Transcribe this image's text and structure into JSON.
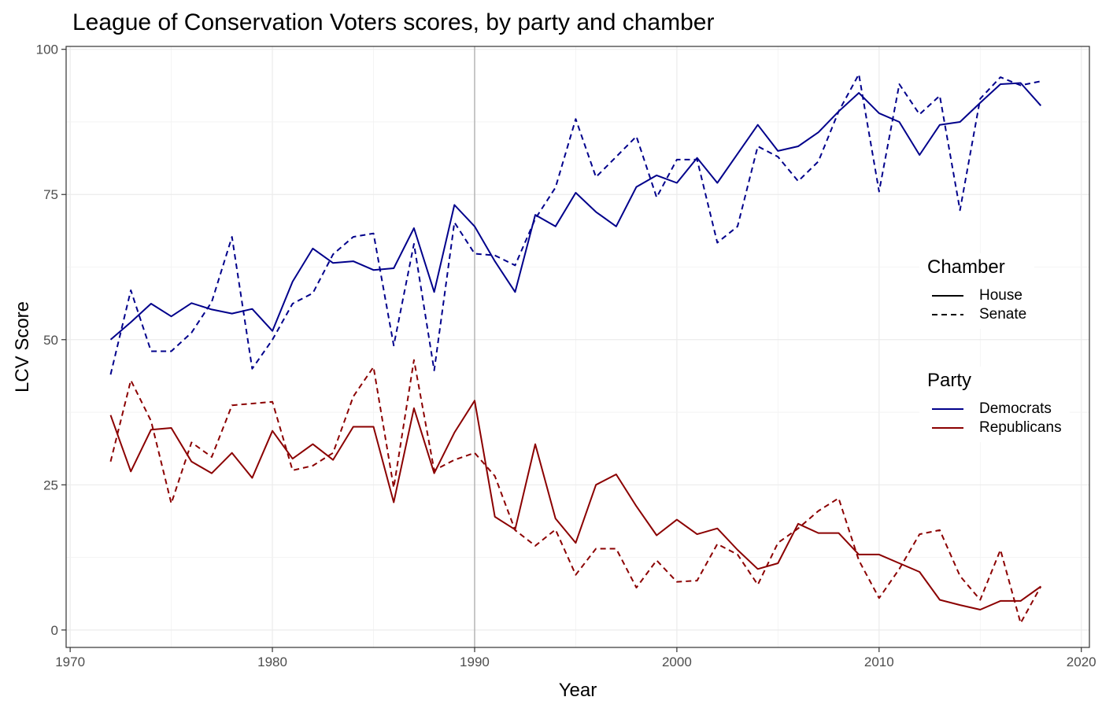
{
  "chart_data": {
    "type": "line",
    "title": "League of Conservation Voters scores, by party and chamber",
    "xlabel": "Year",
    "ylabel": "LCV Score",
    "xlim": [
      1969.8,
      2020.4
    ],
    "ylim": [
      -3,
      100.5
    ],
    "x_ticks": [
      1970,
      1980,
      1990,
      2000,
      2010,
      2020
    ],
    "y_ticks": [
      0,
      25,
      50,
      75,
      100
    ],
    "grid": true,
    "reference_line_x": 1990,
    "x": [
      1972,
      1973,
      1974,
      1975,
      1976,
      1977,
      1978,
      1979,
      1980,
      1981,
      1982,
      1983,
      1984,
      1985,
      1986,
      1987,
      1988,
      1989,
      1990,
      1991,
      1992,
      1993,
      1994,
      1995,
      1996,
      1997,
      1998,
      1999,
      2000,
      2001,
      2002,
      2003,
      2004,
      2005,
      2006,
      2007,
      2008,
      2009,
      2010,
      2011,
      2012,
      2013,
      2014,
      2015,
      2016,
      2017,
      2018
    ],
    "series": [
      {
        "party": "Democrats",
        "chamber": "House",
        "color": "#00008b",
        "dash": "solid",
        "values": [
          50,
          53,
          56.2,
          54,
          56.3,
          55.2,
          54.5,
          55.3,
          51.5,
          60,
          65.7,
          63.2,
          63.5,
          62,
          62.3,
          69.2,
          58.2,
          73.2,
          69.5,
          63.5,
          58.2,
          71.5,
          69.5,
          75.3,
          72,
          69.5,
          76.3,
          78.3,
          77,
          81.3,
          77,
          82,
          87,
          82.5,
          83.3,
          85.7,
          89.3,
          92.5,
          89,
          87.5,
          81.8,
          87,
          87.5,
          90.8,
          94,
          94.2,
          90.3
        ]
      },
      {
        "party": "Democrats",
        "chamber": "Senate",
        "color": "#00008b",
        "dash": "dashed",
        "values": [
          44,
          58.5,
          48,
          48,
          51.2,
          56.5,
          67.7,
          45,
          50,
          56.2,
          58,
          64.7,
          67.7,
          68.3,
          49,
          66.5,
          44.7,
          70.2,
          64.8,
          64.5,
          62.8,
          70.8,
          76.2,
          88,
          78,
          81.5,
          85,
          74.5,
          81,
          81,
          66.7,
          69.5,
          83.3,
          81.5,
          77.3,
          80.7,
          89.3,
          95.7,
          75.5,
          94,
          88.8,
          92,
          72.3,
          91.5,
          95.2,
          93.8,
          94.5
        ]
      },
      {
        "party": "Republicans",
        "chamber": "House",
        "color": "#8b0000",
        "dash": "solid",
        "values": [
          37,
          27.3,
          34.5,
          34.8,
          29,
          27,
          30.5,
          26.2,
          34.3,
          29.5,
          32,
          29.3,
          35,
          35,
          22,
          38.2,
          27,
          34,
          39.5,
          19.5,
          17.3,
          32,
          19.2,
          15,
          25,
          26.8,
          21.3,
          16.3,
          19,
          16.5,
          17.5,
          13.8,
          10.5,
          11.5,
          18.3,
          16.7,
          16.7,
          13,
          13,
          11.5,
          10,
          5.2,
          4.3,
          3.5,
          5,
          5,
          7.5
        ]
      },
      {
        "party": "Republicans",
        "chamber": "Senate",
        "color": "#8b0000",
        "dash": "dashed",
        "values": [
          29,
          43,
          36,
          21.8,
          32.3,
          29.8,
          38.7,
          39,
          39.3,
          27.5,
          28.3,
          30.5,
          40.2,
          45.3,
          24.5,
          46.5,
          27.5,
          29.3,
          30.5,
          26.5,
          17.2,
          14.5,
          17.3,
          9.5,
          14,
          14,
          7.3,
          12,
          8.3,
          8.5,
          14.8,
          13,
          7.8,
          15,
          17.5,
          20.5,
          22.7,
          12,
          5.5,
          10.5,
          16.5,
          17.2,
          9.3,
          5.2,
          13.8,
          1.2,
          7.5
        ]
      }
    ],
    "legends": {
      "chamber": {
        "title": "Chamber",
        "items": [
          {
            "label": "House",
            "dash": "solid"
          },
          {
            "label": "Senate",
            "dash": "dashed"
          }
        ]
      },
      "party": {
        "title": "Party",
        "items": [
          {
            "label": "Democrats",
            "color": "#00008b"
          },
          {
            "label": "Republicans",
            "color": "#8b0000"
          }
        ]
      }
    }
  }
}
